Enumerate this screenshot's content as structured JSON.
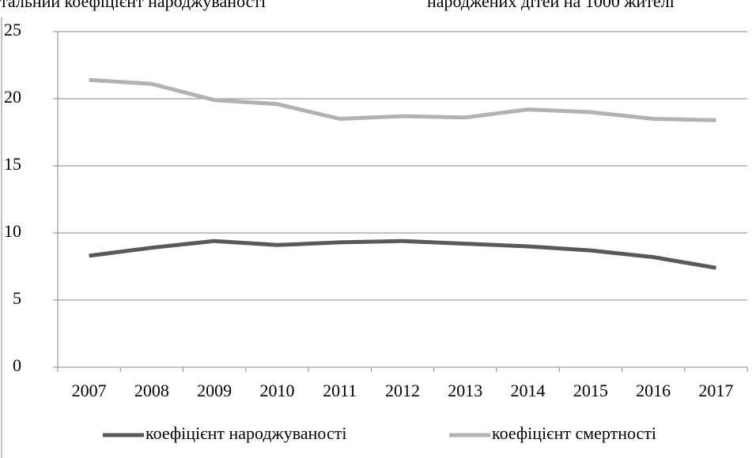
{
  "chart_data": {
    "type": "line",
    "annotations": [
      "тальний коефіцієнт народжуваності",
      "народжених дітей на 1000 жителі"
    ],
    "categories": [
      "2007",
      "2008",
      "2009",
      "2010",
      "2011",
      "2012",
      "2013",
      "2014",
      "2015",
      "2016",
      "2017"
    ],
    "series": [
      {
        "name": "коефіцієнт народжуваності",
        "color": "#595959",
        "values": [
          8.3,
          8.9,
          9.4,
          9.1,
          9.3,
          9.4,
          9.2,
          9.0,
          8.7,
          8.2,
          7.4
        ]
      },
      {
        "name": "коефіцієнт смертності",
        "color": "#b2b2b2",
        "values": [
          21.4,
          21.1,
          19.9,
          19.6,
          18.5,
          18.7,
          18.6,
          19.2,
          19.0,
          18.5,
          18.4
        ]
      }
    ],
    "ylim": [
      0,
      25
    ],
    "yticks": [
      0,
      5,
      10,
      15,
      20,
      25
    ],
    "grid": true,
    "legend": "bottom"
  }
}
